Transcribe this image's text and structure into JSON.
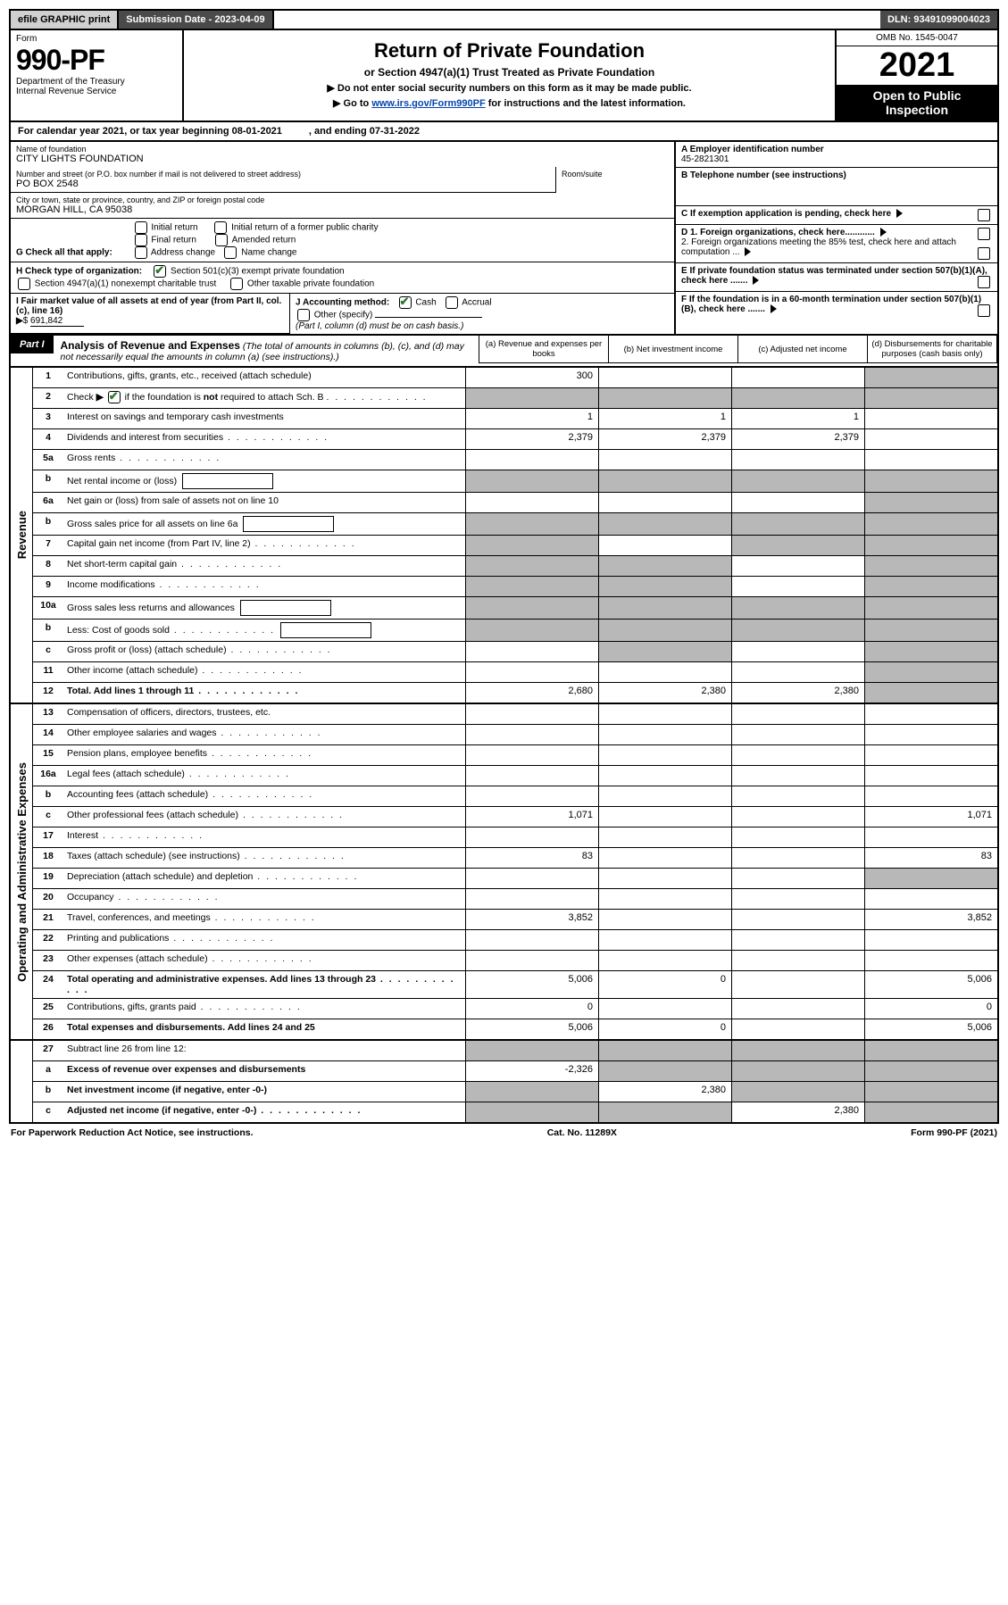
{
  "topbar": {
    "efile": "efile GRAPHIC print",
    "submission": "Submission Date - 2023-04-09",
    "dln": "DLN: 93491099004023"
  },
  "header": {
    "form_label": "Form",
    "form_no": "990-PF",
    "dept": "Department of the Treasury",
    "irs": "Internal Revenue Service",
    "title": "Return of Private Foundation",
    "subtitle": "or Section 4947(a)(1) Trust Treated as Private Foundation",
    "inst1": "▶ Do not enter social security numbers on this form as it may be made public.",
    "inst2_pre": "▶ Go to ",
    "inst2_link": "www.irs.gov/Form990PF",
    "inst2_post": " for instructions and the latest information.",
    "omb": "OMB No. 1545-0047",
    "year": "2021",
    "open": "Open to Public Inspection"
  },
  "calyear": {
    "text": "For calendar year 2021, or tax year beginning 08-01-2021",
    "ending": ", and ending 07-31-2022"
  },
  "info": {
    "name_label": "Name of foundation",
    "name": "CITY LIGHTS FOUNDATION",
    "street_label": "Number and street (or P.O. box number if mail is not delivered to street address)",
    "street": "PO BOX 2548",
    "room_label": "Room/suite",
    "city_label": "City or town, state or province, country, and ZIP or foreign postal code",
    "city": "MORGAN HILL, CA  95038",
    "g_label": "G Check all that apply:",
    "g_opts": [
      "Initial return",
      "Final return",
      "Address change",
      "Initial return of a former public charity",
      "Amended return",
      "Name change"
    ],
    "h_label": "H Check type of organization:",
    "h_opt1": "Section 501(c)(3) exempt private foundation",
    "h_opt2": "Section 4947(a)(1) nonexempt charitable trust",
    "h_opt3": "Other taxable private foundation",
    "i_label": "I Fair market value of all assets at end of year (from Part II, col. (c), line 16)",
    "i_val": "691,842",
    "j_label": "J Accounting method:",
    "j_cash": "Cash",
    "j_accrual": "Accrual",
    "j_other": "Other (specify)",
    "j_note": "(Part I, column (d) must be on cash basis.)",
    "a_label": "A Employer identification number",
    "a_val": "45-2821301",
    "b_label": "B Telephone number (see instructions)",
    "c_label": "C If exemption application is pending, check here",
    "d1": "D 1. Foreign organizations, check here............",
    "d2": "2. Foreign organizations meeting the 85% test, check here and attach computation ...",
    "e_label": "E  If private foundation status was terminated under section 507(b)(1)(A), check here .......",
    "f_label": "F  If the foundation is in a 60-month termination under section 507(b)(1)(B), check here ......."
  },
  "part1": {
    "tag": "Part I",
    "title": "Analysis of Revenue and Expenses",
    "title_note": "(The total of amounts in columns (b), (c), and (d) may not necessarily equal the amounts in column (a) (see instructions).)",
    "colA": "(a)   Revenue and expenses per books",
    "colB": "(b)   Net investment income",
    "colC": "(c)   Adjusted net income",
    "colD": "(d)   Disbursements for charitable purposes (cash basis only)"
  },
  "side": {
    "revenue": "Revenue",
    "expenses": "Operating and Administrative Expenses"
  },
  "rows": [
    {
      "ln": "1",
      "desc": "Contributions, gifts, grants, etc., received (attach schedule)",
      "a": "300",
      "dGrey": true
    },
    {
      "ln": "2",
      "desc": "Check ▶ ☑ if the foundation is not required to attach Sch. B",
      "noData": true,
      "dots": true,
      "allGrey": true
    },
    {
      "ln": "3",
      "desc": "Interest on savings and temporary cash investments",
      "a": "1",
      "b": "1",
      "c": "1"
    },
    {
      "ln": "4",
      "desc": "Dividends and interest from securities",
      "dots": true,
      "a": "2,379",
      "b": "2,379",
      "c": "2,379"
    },
    {
      "ln": "5a",
      "desc": "Gross rents",
      "dots": true
    },
    {
      "ln": "b",
      "desc": "Net rental income or (loss)",
      "inlineBox": true,
      "allGrey": true
    },
    {
      "ln": "6a",
      "desc": "Net gain or (loss) from sale of assets not on line 10",
      "dGrey": true
    },
    {
      "ln": "b",
      "desc": "Gross sales price for all assets on line 6a",
      "inlineBox": true,
      "allGrey": true
    },
    {
      "ln": "7",
      "desc": "Capital gain net income (from Part IV, line 2)",
      "dots": true,
      "aGrey": true,
      "cGrey": true,
      "dGrey": true
    },
    {
      "ln": "8",
      "desc": "Net short-term capital gain",
      "dots": true,
      "aGrey": true,
      "bGrey": true,
      "dGrey": true
    },
    {
      "ln": "9",
      "desc": "Income modifications",
      "dots": true,
      "aGrey": true,
      "bGrey": true,
      "dGrey": true
    },
    {
      "ln": "10a",
      "desc": "Gross sales less returns and allowances",
      "inlineBox": true,
      "allGrey": true
    },
    {
      "ln": "b",
      "desc": "Less: Cost of goods sold",
      "dots": true,
      "inlineBox": true,
      "allGrey": true
    },
    {
      "ln": "c",
      "desc": "Gross profit or (loss) (attach schedule)",
      "dots": true,
      "aGrey": false,
      "bGrey": true,
      "dGrey": true
    },
    {
      "ln": "11",
      "desc": "Other income (attach schedule)",
      "dots": true,
      "dGrey": true
    },
    {
      "ln": "12",
      "desc": "Total. Add lines 1 through 11",
      "bold": true,
      "dots": true,
      "a": "2,680",
      "b": "2,380",
      "c": "2,380",
      "dGrey": true
    }
  ],
  "exprows": [
    {
      "ln": "13",
      "desc": "Compensation of officers, directors, trustees, etc."
    },
    {
      "ln": "14",
      "desc": "Other employee salaries and wages",
      "dots": true
    },
    {
      "ln": "15",
      "desc": "Pension plans, employee benefits",
      "dots": true
    },
    {
      "ln": "16a",
      "desc": "Legal fees (attach schedule)",
      "dots": true
    },
    {
      "ln": "b",
      "desc": "Accounting fees (attach schedule)",
      "dots": true
    },
    {
      "ln": "c",
      "desc": "Other professional fees (attach schedule)",
      "dots": true,
      "a": "1,071",
      "d": "1,071"
    },
    {
      "ln": "17",
      "desc": "Interest",
      "dots": true
    },
    {
      "ln": "18",
      "desc": "Taxes (attach schedule) (see instructions)",
      "dots": true,
      "a": "83",
      "d": "83"
    },
    {
      "ln": "19",
      "desc": "Depreciation (attach schedule) and depletion",
      "dots": true,
      "dGrey": true
    },
    {
      "ln": "20",
      "desc": "Occupancy",
      "dots": true
    },
    {
      "ln": "21",
      "desc": "Travel, conferences, and meetings",
      "dots": true,
      "a": "3,852",
      "d": "3,852"
    },
    {
      "ln": "22",
      "desc": "Printing and publications",
      "dots": true
    },
    {
      "ln": "23",
      "desc": "Other expenses (attach schedule)",
      "dots": true
    },
    {
      "ln": "24",
      "desc": "Total operating and administrative expenses. Add lines 13 through 23",
      "bold": true,
      "dots": true,
      "a": "5,006",
      "b": "0",
      "d": "5,006"
    },
    {
      "ln": "25",
      "desc": "Contributions, gifts, grants paid",
      "dots": true,
      "a": "0",
      "d": "0"
    },
    {
      "ln": "26",
      "desc": "Total expenses and disbursements. Add lines 24 and 25",
      "bold": true,
      "a": "5,006",
      "b": "0",
      "d": "5,006"
    }
  ],
  "bottomrows": [
    {
      "ln": "27",
      "desc": "Subtract line 26 from line 12:",
      "allGrey": true
    },
    {
      "ln": "a",
      "desc": "Excess of revenue over expenses and disbursements",
      "bold": true,
      "a": "-2,326",
      "bGrey": true,
      "cGrey": true,
      "dGrey": true
    },
    {
      "ln": "b",
      "desc": "Net investment income (if negative, enter -0-)",
      "bold": true,
      "aGrey": true,
      "b": "2,380",
      "cGrey": true,
      "dGrey": true
    },
    {
      "ln": "c",
      "desc": "Adjusted net income (if negative, enter -0-)",
      "bold": true,
      "dots": true,
      "aGrey": true,
      "bGrey": true,
      "c": "2,380",
      "dGrey": true
    }
  ],
  "footer": {
    "left": "For Paperwork Reduction Act Notice, see instructions.",
    "center": "Cat. No. 11289X",
    "right": "Form 990-PF (2021)"
  }
}
